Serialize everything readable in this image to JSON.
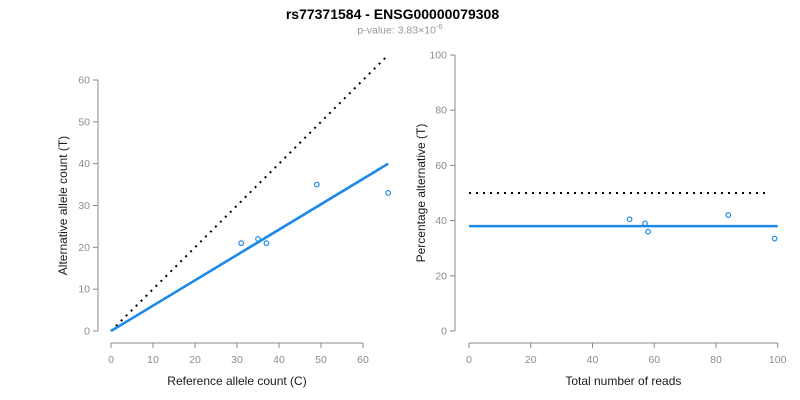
{
  "header": {
    "title": "rs77371584 - ENSG00000079308",
    "pvalue_base": "p-value: 3.83×10",
    "pvalue_exponent": "-6"
  },
  "colors": {
    "accent_blue": "#1E8AE8",
    "dotted_line": "#000000",
    "axis_line": "#888888",
    "tick_label": "#8C8C8C",
    "axis_title": "#1A1A1A"
  },
  "chart_data": [
    {
      "type": "scatter",
      "name": "allele-counts-plot",
      "xlabel": "Reference allele count (C)",
      "ylabel": "Alternative allele count (T)",
      "xlim": [
        0,
        66
      ],
      "ylim": [
        0,
        66
      ],
      "xticks": [
        0,
        10,
        20,
        30,
        40,
        50,
        60
      ],
      "yticks": [
        0,
        10,
        20,
        30,
        40,
        50,
        60
      ],
      "grid": false,
      "points": [
        [
          31,
          21
        ],
        [
          35,
          22
        ],
        [
          37,
          21
        ],
        [
          49,
          35
        ],
        [
          66,
          33
        ]
      ],
      "lines": [
        {
          "name": "identity-line",
          "style": "dotted",
          "color_key": "dotted_line",
          "from": [
            0,
            0
          ],
          "to": [
            66,
            66
          ]
        },
        {
          "name": "fit-line",
          "style": "solid",
          "color_key": "accent_blue",
          "from": [
            0,
            0
          ],
          "to": [
            66,
            40
          ]
        }
      ]
    },
    {
      "type": "scatter",
      "name": "percentage-alternative-plot",
      "xlabel": "Total number of reads",
      "ylabel": "Percentage alternative (T)",
      "xlim": [
        0,
        100
      ],
      "ylim": [
        0,
        100
      ],
      "xticks": [
        0,
        20,
        40,
        60,
        80,
        100
      ],
      "yticks": [
        0,
        20,
        40,
        60,
        80,
        100
      ],
      "grid": false,
      "points": [
        [
          52,
          40.5
        ],
        [
          57,
          39
        ],
        [
          58,
          36
        ],
        [
          84,
          42
        ],
        [
          99,
          33.5
        ]
      ],
      "lines": [
        {
          "name": "expected-50pct-line",
          "style": "dotted",
          "color_key": "dotted_line",
          "from": [
            0,
            50
          ],
          "to": [
            97,
            50
          ]
        },
        {
          "name": "mean-percentage-line",
          "style": "solid",
          "color_key": "accent_blue",
          "from": [
            0,
            38
          ],
          "to": [
            100,
            38
          ]
        }
      ]
    }
  ]
}
